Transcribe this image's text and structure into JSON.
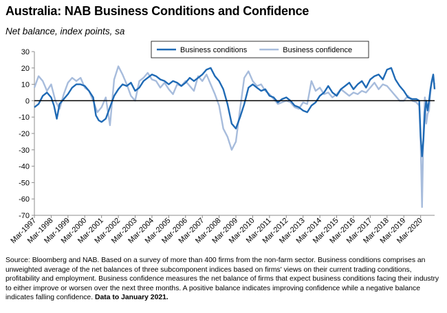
{
  "title": "Australia: NAB Business Conditions and Confidence",
  "subtitle": "Net balance, index points, sa",
  "source_text": "Source: Bloomberg and NAB. Based on a survey of more than 400 firms from the non-farm sector.  Business conditions comprises an unweighted average of the net balances of three subcomponent indices based on firms' views on their current trading conditions, profitability and employment.  Business confidence measures the net balance of firms that expect business conditions facing their industry to either improve or worsen over the next three months.  A positive balance indicates improving confidence while a negative balance indicates falling confidence.",
  "source_bold": "Data to January 2021.",
  "colors": {
    "conditions": "#1f6ab5",
    "confidence": "#a7bcdc",
    "zero_line": "#000000",
    "axis": "#8c8c8c"
  },
  "chart_data": {
    "type": "line",
    "title": "Australia: NAB Business Conditions and Confidence",
    "ylabel": "Net balance, index points, sa",
    "ylim": [
      -70,
      30
    ],
    "yticks": [
      30,
      20,
      10,
      0,
      -10,
      -20,
      -30,
      -40,
      -50,
      -60,
      -70
    ],
    "xlim": [
      "1997-03",
      "2021-01"
    ],
    "xticks": [
      "Mar-1997",
      "Mar-1998",
      "Mar-1999",
      "Mar-2000",
      "Mar-2001",
      "Mar-2002",
      "Mar-2003",
      "Mar-2004",
      "Mar-2005",
      "Mar-2006",
      "Mar-2007",
      "Mar-2008",
      "Mar-2009",
      "Mar-2010",
      "Mar-2011",
      "Mar-2012",
      "Mar-2013",
      "Mar-2014",
      "Mar-2015",
      "Mar-2016",
      "Mar-2017",
      "Mar-2018",
      "Mar-2019",
      "Mar-2020"
    ],
    "legend": "top-right",
    "grid": false,
    "series": [
      {
        "name": "Business conditions",
        "color": "#1f6ab5",
        "points": [
          [
            "1997-03",
            -4
          ],
          [
            "1997-06",
            -2
          ],
          [
            "1997-09",
            3
          ],
          [
            "1997-12",
            5
          ],
          [
            "1998-03",
            2
          ],
          [
            "1998-05",
            -3
          ],
          [
            "1998-07",
            -11
          ],
          [
            "1998-09",
            -2
          ],
          [
            "1998-12",
            1
          ],
          [
            "1999-03",
            4
          ],
          [
            "1999-06",
            8
          ],
          [
            "1999-09",
            10
          ],
          [
            "1999-12",
            10
          ],
          [
            "2000-03",
            9
          ],
          [
            "2000-06",
            6
          ],
          [
            "2000-09",
            2
          ],
          [
            "2000-11",
            -9
          ],
          [
            "2001-01",
            -12
          ],
          [
            "2001-03",
            -13
          ],
          [
            "2001-06",
            -11
          ],
          [
            "2001-09",
            -4
          ],
          [
            "2001-12",
            3
          ],
          [
            "2002-03",
            7
          ],
          [
            "2002-06",
            10
          ],
          [
            "2002-09",
            9
          ],
          [
            "2002-12",
            11
          ],
          [
            "2003-03",
            6
          ],
          [
            "2003-06",
            8
          ],
          [
            "2003-09",
            12
          ],
          [
            "2003-12",
            14
          ],
          [
            "2004-03",
            16
          ],
          [
            "2004-06",
            15
          ],
          [
            "2004-09",
            13
          ],
          [
            "2004-12",
            12
          ],
          [
            "2005-03",
            10
          ],
          [
            "2005-06",
            12
          ],
          [
            "2005-09",
            11
          ],
          [
            "2005-12",
            9
          ],
          [
            "2006-03",
            11
          ],
          [
            "2006-06",
            14
          ],
          [
            "2006-09",
            12
          ],
          [
            "2006-12",
            14
          ],
          [
            "2007-03",
            16
          ],
          [
            "2007-06",
            19
          ],
          [
            "2007-09",
            20
          ],
          [
            "2007-12",
            15
          ],
          [
            "2008-03",
            12
          ],
          [
            "2008-06",
            7
          ],
          [
            "2008-09",
            -2
          ],
          [
            "2008-12",
            -14
          ],
          [
            "2009-03",
            -17
          ],
          [
            "2009-06",
            -10
          ],
          [
            "2009-09",
            -2
          ],
          [
            "2009-12",
            8
          ],
          [
            "2010-03",
            10
          ],
          [
            "2010-06",
            8
          ],
          [
            "2010-09",
            6
          ],
          [
            "2010-12",
            7
          ],
          [
            "2011-03",
            3
          ],
          [
            "2011-06",
            2
          ],
          [
            "2011-09",
            -1
          ],
          [
            "2011-12",
            1
          ],
          [
            "2012-03",
            2
          ],
          [
            "2012-06",
            0
          ],
          [
            "2012-09",
            -3
          ],
          [
            "2012-12",
            -4
          ],
          [
            "2013-03",
            -6
          ],
          [
            "2013-06",
            -7
          ],
          [
            "2013-09",
            -3
          ],
          [
            "2013-12",
            -1
          ],
          [
            "2014-03",
            3
          ],
          [
            "2014-06",
            5
          ],
          [
            "2014-09",
            9
          ],
          [
            "2014-12",
            5
          ],
          [
            "2015-03",
            3
          ],
          [
            "2015-06",
            7
          ],
          [
            "2015-09",
            9
          ],
          [
            "2015-12",
            11
          ],
          [
            "2016-03",
            7
          ],
          [
            "2016-06",
            10
          ],
          [
            "2016-09",
            12
          ],
          [
            "2016-12",
            8
          ],
          [
            "2017-03",
            13
          ],
          [
            "2017-06",
            15
          ],
          [
            "2017-09",
            16
          ],
          [
            "2017-12",
            13
          ],
          [
            "2018-03",
            19
          ],
          [
            "2018-06",
            20
          ],
          [
            "2018-09",
            13
          ],
          [
            "2018-12",
            9
          ],
          [
            "2019-03",
            6
          ],
          [
            "2019-06",
            2
          ],
          [
            "2019-09",
            1
          ],
          [
            "2019-12",
            1
          ],
          [
            "2020-02",
            0
          ],
          [
            "2020-03",
            -22
          ],
          [
            "2020-04",
            -34
          ],
          [
            "2020-05",
            -24
          ],
          [
            "2020-06",
            -7
          ],
          [
            "2020-07",
            0
          ],
          [
            "2020-08",
            -6
          ],
          [
            "2020-09",
            0
          ],
          [
            "2020-10",
            7
          ],
          [
            "2020-11",
            12
          ],
          [
            "2020-12",
            16
          ],
          [
            "2021-01",
            7
          ]
        ]
      },
      {
        "name": "Business confidence",
        "color": "#a7bcdc",
        "points": [
          [
            "1997-03",
            8
          ],
          [
            "1997-06",
            15
          ],
          [
            "1997-09",
            12
          ],
          [
            "1997-12",
            6
          ],
          [
            "1998-03",
            10
          ],
          [
            "1998-06",
            0
          ],
          [
            "1998-09",
            -5
          ],
          [
            "1998-12",
            4
          ],
          [
            "1999-03",
            11
          ],
          [
            "1999-06",
            14
          ],
          [
            "1999-09",
            12
          ],
          [
            "1999-12",
            14
          ],
          [
            "2000-03",
            8
          ],
          [
            "2000-06",
            6
          ],
          [
            "2000-09",
            0
          ],
          [
            "2000-12",
            -7
          ],
          [
            "2001-03",
            -4
          ],
          [
            "2001-06",
            2
          ],
          [
            "2001-09",
            -15
          ],
          [
            "2001-12",
            13
          ],
          [
            "2002-03",
            21
          ],
          [
            "2002-06",
            16
          ],
          [
            "2002-09",
            10
          ],
          [
            "2002-12",
            3
          ],
          [
            "2003-03",
            0
          ],
          [
            "2003-06",
            12
          ],
          [
            "2003-09",
            14
          ],
          [
            "2003-12",
            17
          ],
          [
            "2004-03",
            13
          ],
          [
            "2004-06",
            12
          ],
          [
            "2004-09",
            8
          ],
          [
            "2004-12",
            11
          ],
          [
            "2005-03",
            7
          ],
          [
            "2005-06",
            4
          ],
          [
            "2005-09",
            10
          ],
          [
            "2005-12",
            9
          ],
          [
            "2006-03",
            12
          ],
          [
            "2006-06",
            9
          ],
          [
            "2006-09",
            6
          ],
          [
            "2006-12",
            15
          ],
          [
            "2007-03",
            12
          ],
          [
            "2007-06",
            16
          ],
          [
            "2007-09",
            10
          ],
          [
            "2007-12",
            4
          ],
          [
            "2008-03",
            -3
          ],
          [
            "2008-06",
            -17
          ],
          [
            "2008-09",
            -22
          ],
          [
            "2008-12",
            -30
          ],
          [
            "2009-03",
            -25
          ],
          [
            "2009-06",
            -5
          ],
          [
            "2009-09",
            14
          ],
          [
            "2009-12",
            18
          ],
          [
            "2010-03",
            12
          ],
          [
            "2010-06",
            9
          ],
          [
            "2010-09",
            10
          ],
          [
            "2010-12",
            6
          ],
          [
            "2011-03",
            4
          ],
          [
            "2011-06",
            1
          ],
          [
            "2011-09",
            -2
          ],
          [
            "2011-12",
            -1
          ],
          [
            "2012-03",
            0
          ],
          [
            "2012-06",
            -1
          ],
          [
            "2012-09",
            -4
          ],
          [
            "2012-12",
            -5
          ],
          [
            "2013-03",
            -1
          ],
          [
            "2013-06",
            -2
          ],
          [
            "2013-09",
            12
          ],
          [
            "2013-12",
            6
          ],
          [
            "2014-03",
            8
          ],
          [
            "2014-06",
            4
          ],
          [
            "2014-09",
            5
          ],
          [
            "2014-12",
            2
          ],
          [
            "2015-03",
            4
          ],
          [
            "2015-06",
            7
          ],
          [
            "2015-09",
            5
          ],
          [
            "2015-12",
            3
          ],
          [
            "2016-03",
            5
          ],
          [
            "2016-06",
            4
          ],
          [
            "2016-09",
            6
          ],
          [
            "2016-12",
            5
          ],
          [
            "2017-03",
            8
          ],
          [
            "2017-06",
            11
          ],
          [
            "2017-09",
            7
          ],
          [
            "2017-12",
            10
          ],
          [
            "2018-03",
            9
          ],
          [
            "2018-06",
            6
          ],
          [
            "2018-09",
            3
          ],
          [
            "2018-12",
            0
          ],
          [
            "2019-03",
            0
          ],
          [
            "2019-06",
            3
          ],
          [
            "2019-09",
            0
          ],
          [
            "2019-12",
            -1
          ],
          [
            "2020-02",
            -3
          ],
          [
            "2020-03",
            -26
          ],
          [
            "2020-04",
            -65
          ],
          [
            "2020-05",
            -20
          ],
          [
            "2020-06",
            2
          ],
          [
            "2020-07",
            -14
          ],
          [
            "2020-08",
            -8
          ],
          [
            "2020-09",
            -6
          ],
          [
            "2020-10",
            5
          ],
          [
            "2020-11",
            12
          ],
          [
            "2020-12",
            12
          ],
          [
            "2021-01",
            10
          ]
        ]
      }
    ]
  }
}
